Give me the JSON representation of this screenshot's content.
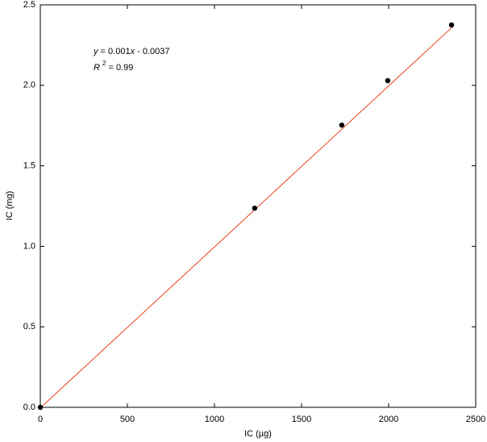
{
  "chart_data": {
    "type": "scatter",
    "x_label": "IC (µg)",
    "y_label": "IC (mg)",
    "annotations": [
      [
        "y",
        " = 0.001",
        "x",
        " - 0.0037"
      ],
      [
        "R",
        "2",
        " = 0.99"
      ]
    ],
    "series": [
      {
        "color": "#000000",
        "x": [
          0,
          1231,
          1731,
          1995,
          2361
        ],
        "values": [
          0,
          1.237,
          1.753,
          2.029,
          2.375
        ]
      }
    ],
    "trendline": {
      "color": "#e8401c",
      "x": [
        0,
        2375
      ],
      "values": [
        -0.0037,
        2.3713
      ]
    },
    "xlim": [
      0,
      2500
    ],
    "ylim": [
      0,
      2.5
    ],
    "xticks": [
      0,
      500,
      1000,
      1500,
      2000,
      2500
    ],
    "yticks": [
      {
        "value": 0,
        "label": "0.0"
      },
      {
        "value": 0.5,
        "label": "0.5"
      },
      {
        "value": 1,
        "label": "1.0"
      },
      {
        "value": 1.5,
        "label": "1.5"
      },
      {
        "value": 2,
        "label": "2.0"
      },
      {
        "value": 2.5,
        "label": "2.5"
      }
    ]
  }
}
